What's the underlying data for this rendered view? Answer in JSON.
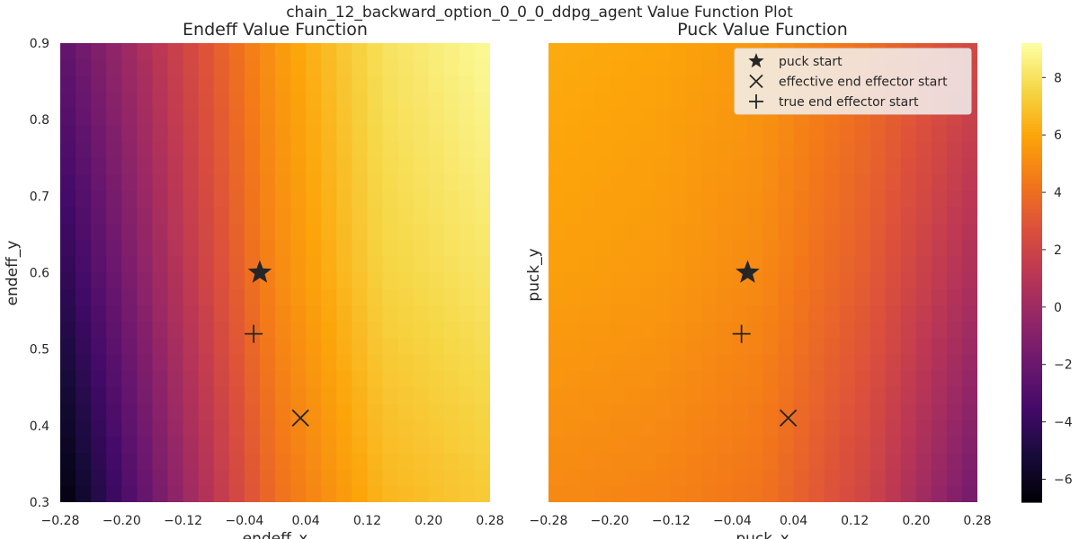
{
  "figure": {
    "title": "chain_12_backward_option_0_0_0_ddpg_agent Value Function Plot"
  },
  "chart_data": [
    {
      "type": "heatmap",
      "title": "Endeff Value Function",
      "xlabel": "endeff_x",
      "ylabel": "endeff_y",
      "xlim": [
        -0.28,
        0.28
      ],
      "ylim": [
        0.3,
        0.9
      ],
      "xticks": [
        "−0.28",
        "−0.20",
        "−0.12",
        "−0.04",
        "0.04",
        "0.12",
        "0.20",
        "0.28"
      ],
      "xtick_values": [
        -0.28,
        -0.2,
        -0.12,
        -0.04,
        0.04,
        0.12,
        0.2,
        0.28
      ],
      "yticks": [
        "0.3",
        "0.4",
        "0.5",
        "0.6",
        "0.7",
        "0.8",
        "0.9"
      ],
      "ytick_values": [
        0.3,
        0.4,
        0.5,
        0.6,
        0.7,
        0.8,
        0.9
      ],
      "grid": false,
      "field_samples": {
        "x": [
          -0.28,
          -0.14,
          0.0,
          0.14,
          0.28
        ],
        "y": [
          0.3,
          0.6,
          0.9
        ],
        "values": [
          [
            -6.8,
            -1.0,
            4.0,
            6.5,
            7.2
          ],
          [
            -4.5,
            0.5,
            5.0,
            7.5,
            8.2
          ],
          [
            -2.5,
            1.5,
            5.5,
            8.0,
            9.0
          ]
        ]
      },
      "markers": [
        {
          "label": "puck start",
          "symbol": "star",
          "x": -0.02,
          "y": 0.6
        },
        {
          "label": "effective end effector start",
          "symbol": "x",
          "x": 0.033,
          "y": 0.41
        },
        {
          "label": "true end effector start",
          "symbol": "plus",
          "x": -0.028,
          "y": 0.52
        }
      ]
    },
    {
      "type": "heatmap",
      "title": "Puck Value Function",
      "xlabel": "puck_x",
      "ylabel": "puck_y",
      "xlim": [
        -0.28,
        0.28
      ],
      "ylim": [
        0.3,
        0.9
      ],
      "xticks": [
        "−0.28",
        "−0.20",
        "−0.12",
        "−0.04",
        "0.04",
        "0.12",
        "0.20",
        "0.28"
      ],
      "xtick_values": [
        -0.28,
        -0.2,
        -0.12,
        -0.04,
        0.04,
        0.12,
        0.2,
        0.28
      ],
      "grid": false,
      "field_samples": {
        "x": [
          -0.28,
          -0.14,
          0.0,
          0.14,
          0.28
        ],
        "y": [
          0.3,
          0.6,
          0.9
        ],
        "values": [
          [
            5.0,
            4.8,
            4.2,
            2.0,
            -1.8
          ],
          [
            5.8,
            5.6,
            5.0,
            3.2,
            0.5
          ],
          [
            6.2,
            6.0,
            5.5,
            4.0,
            2.2
          ]
        ]
      },
      "markers": [
        {
          "label": "puck start",
          "symbol": "star",
          "x": -0.02,
          "y": 0.6
        },
        {
          "label": "effective end effector start",
          "symbol": "x",
          "x": 0.033,
          "y": 0.41
        },
        {
          "label": "true end effector start",
          "symbol": "plus",
          "x": -0.028,
          "y": 0.52
        }
      ],
      "legend": {
        "placement": "top-right",
        "entries": [
          "puck start",
          "effective end effector start",
          "true end effector start"
        ]
      }
    }
  ],
  "colorbar": {
    "colormap": "inferno",
    "range": [
      -6.8,
      9.2
    ],
    "ticks": [
      "−6",
      "−4",
      "−2",
      "0",
      "2",
      "4",
      "6",
      "8"
    ],
    "tick_values": [
      -6,
      -4,
      -2,
      0,
      2,
      4,
      6,
      8
    ]
  },
  "colors": {
    "marker": "#262626",
    "legend_bg": "#f2f2f2"
  }
}
